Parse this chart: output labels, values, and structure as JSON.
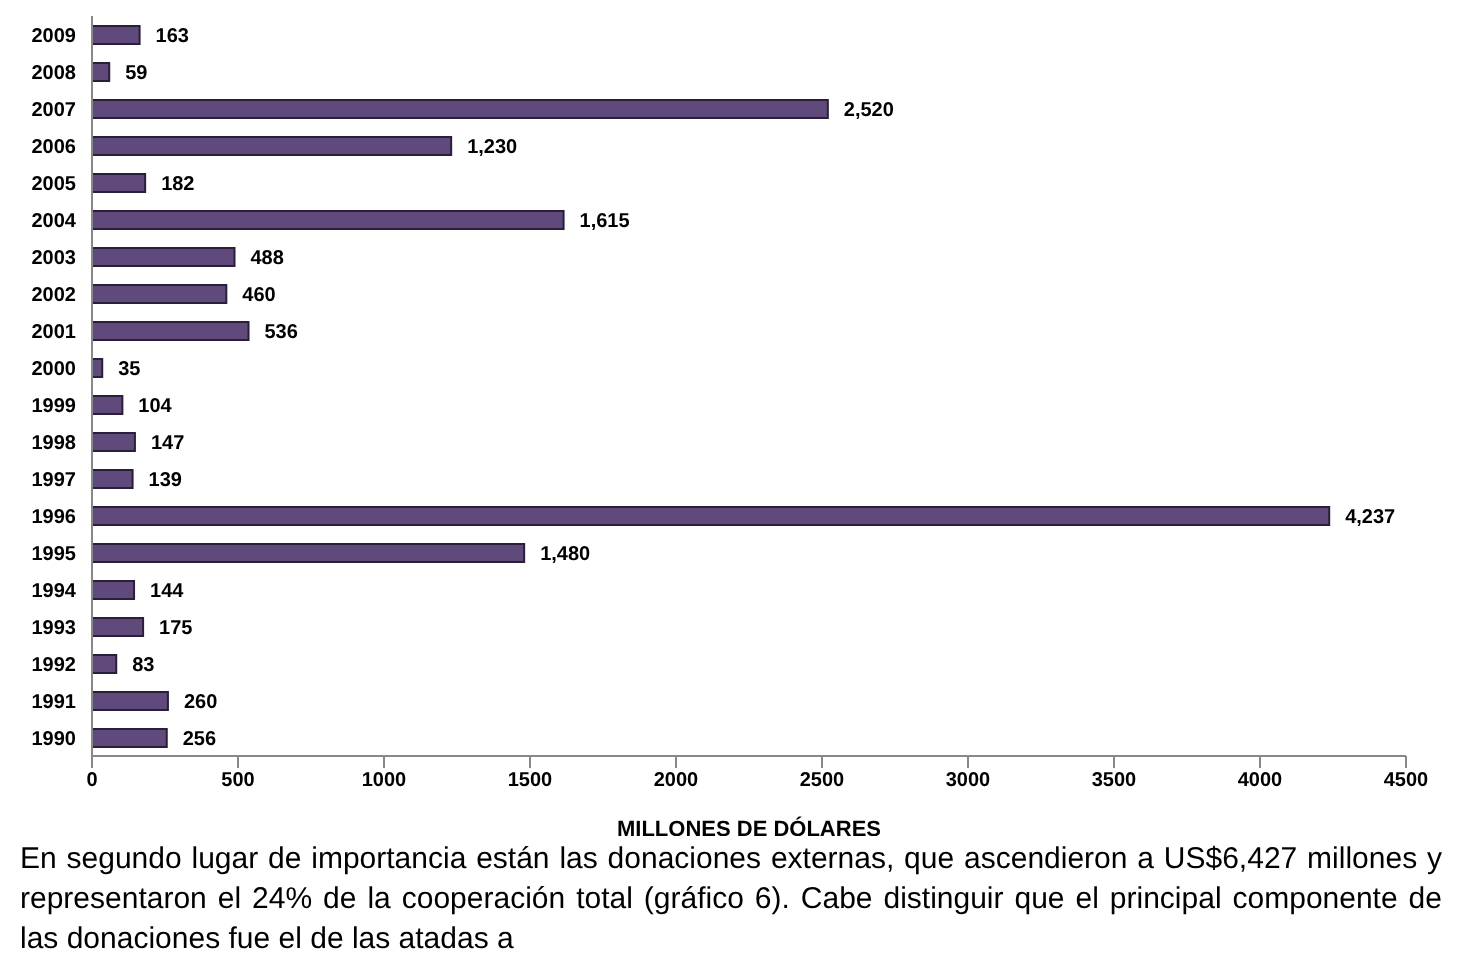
{
  "chart_data": {
    "type": "bar",
    "orientation": "horizontal",
    "xlabel": "MILLONES DE DÓLARES",
    "categories": [
      "2009",
      "2008",
      "2007",
      "2006",
      "2005",
      "2004",
      "2003",
      "2002",
      "2001",
      "2000",
      "1999",
      "1998",
      "1997",
      "1996",
      "1995",
      "1994",
      "1993",
      "1992",
      "1991",
      "1990"
    ],
    "values": [
      163,
      59,
      2520,
      1230,
      182,
      1615,
      488,
      460,
      536,
      35,
      104,
      147,
      139,
      4237,
      1480,
      144,
      175,
      83,
      260,
      256
    ],
    "value_labels": [
      "163",
      "59",
      "2,520",
      "1,230",
      "182",
      "1,615",
      "488",
      "460",
      "536",
      "35",
      "104",
      "147",
      "139",
      "4,237",
      "1,480",
      "144",
      "175",
      "83",
      "260",
      "256"
    ],
    "color": "#604a7b",
    "xlim": [
      0,
      4500
    ],
    "xticks": [
      0,
      500,
      1000,
      1500,
      2000,
      2500,
      3000,
      3500,
      4000,
      4500
    ],
    "annotations": [
      "En segundo lugar de importancia están las donaciones externas, que ascendieron a US$6,427 millones y representaron el 24% de la cooperación total (gráfico 6). Cabe distinguir que el principal componente de las donaciones fue el de las atadas a"
    ]
  }
}
